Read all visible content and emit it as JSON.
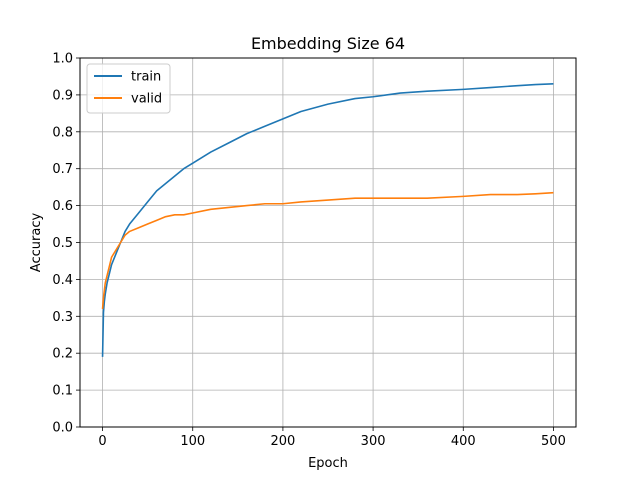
{
  "chart_data": {
    "type": "line",
    "title": "Embedding Size 64",
    "xlabel": "Epoch",
    "ylabel": "Accuracy",
    "xlim": [
      -25,
      525
    ],
    "ylim": [
      0.0,
      1.0
    ],
    "xticks": [
      0,
      100,
      200,
      300,
      400,
      500
    ],
    "yticks": [
      0.0,
      0.1,
      0.2,
      0.3,
      0.4,
      0.5,
      0.6,
      0.7,
      0.8,
      0.9,
      1.0
    ],
    "grid": true,
    "legend_position": "top-left",
    "series": [
      {
        "name": "train",
        "color": "#1f77b4",
        "x": [
          0,
          1,
          2,
          3,
          5,
          8,
          10,
          15,
          20,
          25,
          30,
          40,
          50,
          60,
          70,
          80,
          90,
          100,
          120,
          140,
          160,
          180,
          200,
          220,
          250,
          280,
          300,
          330,
          360,
          400,
          430,
          460,
          480,
          500
        ],
        "y": [
          0.19,
          0.31,
          0.34,
          0.36,
          0.39,
          0.42,
          0.44,
          0.47,
          0.5,
          0.53,
          0.55,
          0.58,
          0.61,
          0.64,
          0.66,
          0.68,
          0.7,
          0.715,
          0.745,
          0.77,
          0.795,
          0.815,
          0.835,
          0.855,
          0.875,
          0.89,
          0.895,
          0.905,
          0.91,
          0.915,
          0.92,
          0.925,
          0.928,
          0.93
        ]
      },
      {
        "name": "valid",
        "color": "#ff7f0e",
        "x": [
          0,
          1,
          2,
          3,
          5,
          8,
          10,
          15,
          20,
          25,
          30,
          40,
          50,
          60,
          70,
          80,
          90,
          100,
          120,
          140,
          160,
          180,
          200,
          220,
          250,
          280,
          300,
          330,
          360,
          400,
          430,
          460,
          480,
          500
        ],
        "y": [
          0.32,
          0.35,
          0.37,
          0.39,
          0.41,
          0.44,
          0.46,
          0.48,
          0.5,
          0.52,
          0.53,
          0.54,
          0.55,
          0.56,
          0.57,
          0.575,
          0.575,
          0.58,
          0.59,
          0.595,
          0.6,
          0.605,
          0.605,
          0.61,
          0.615,
          0.62,
          0.62,
          0.62,
          0.62,
          0.625,
          0.63,
          0.63,
          0.632,
          0.635
        ]
      }
    ]
  }
}
